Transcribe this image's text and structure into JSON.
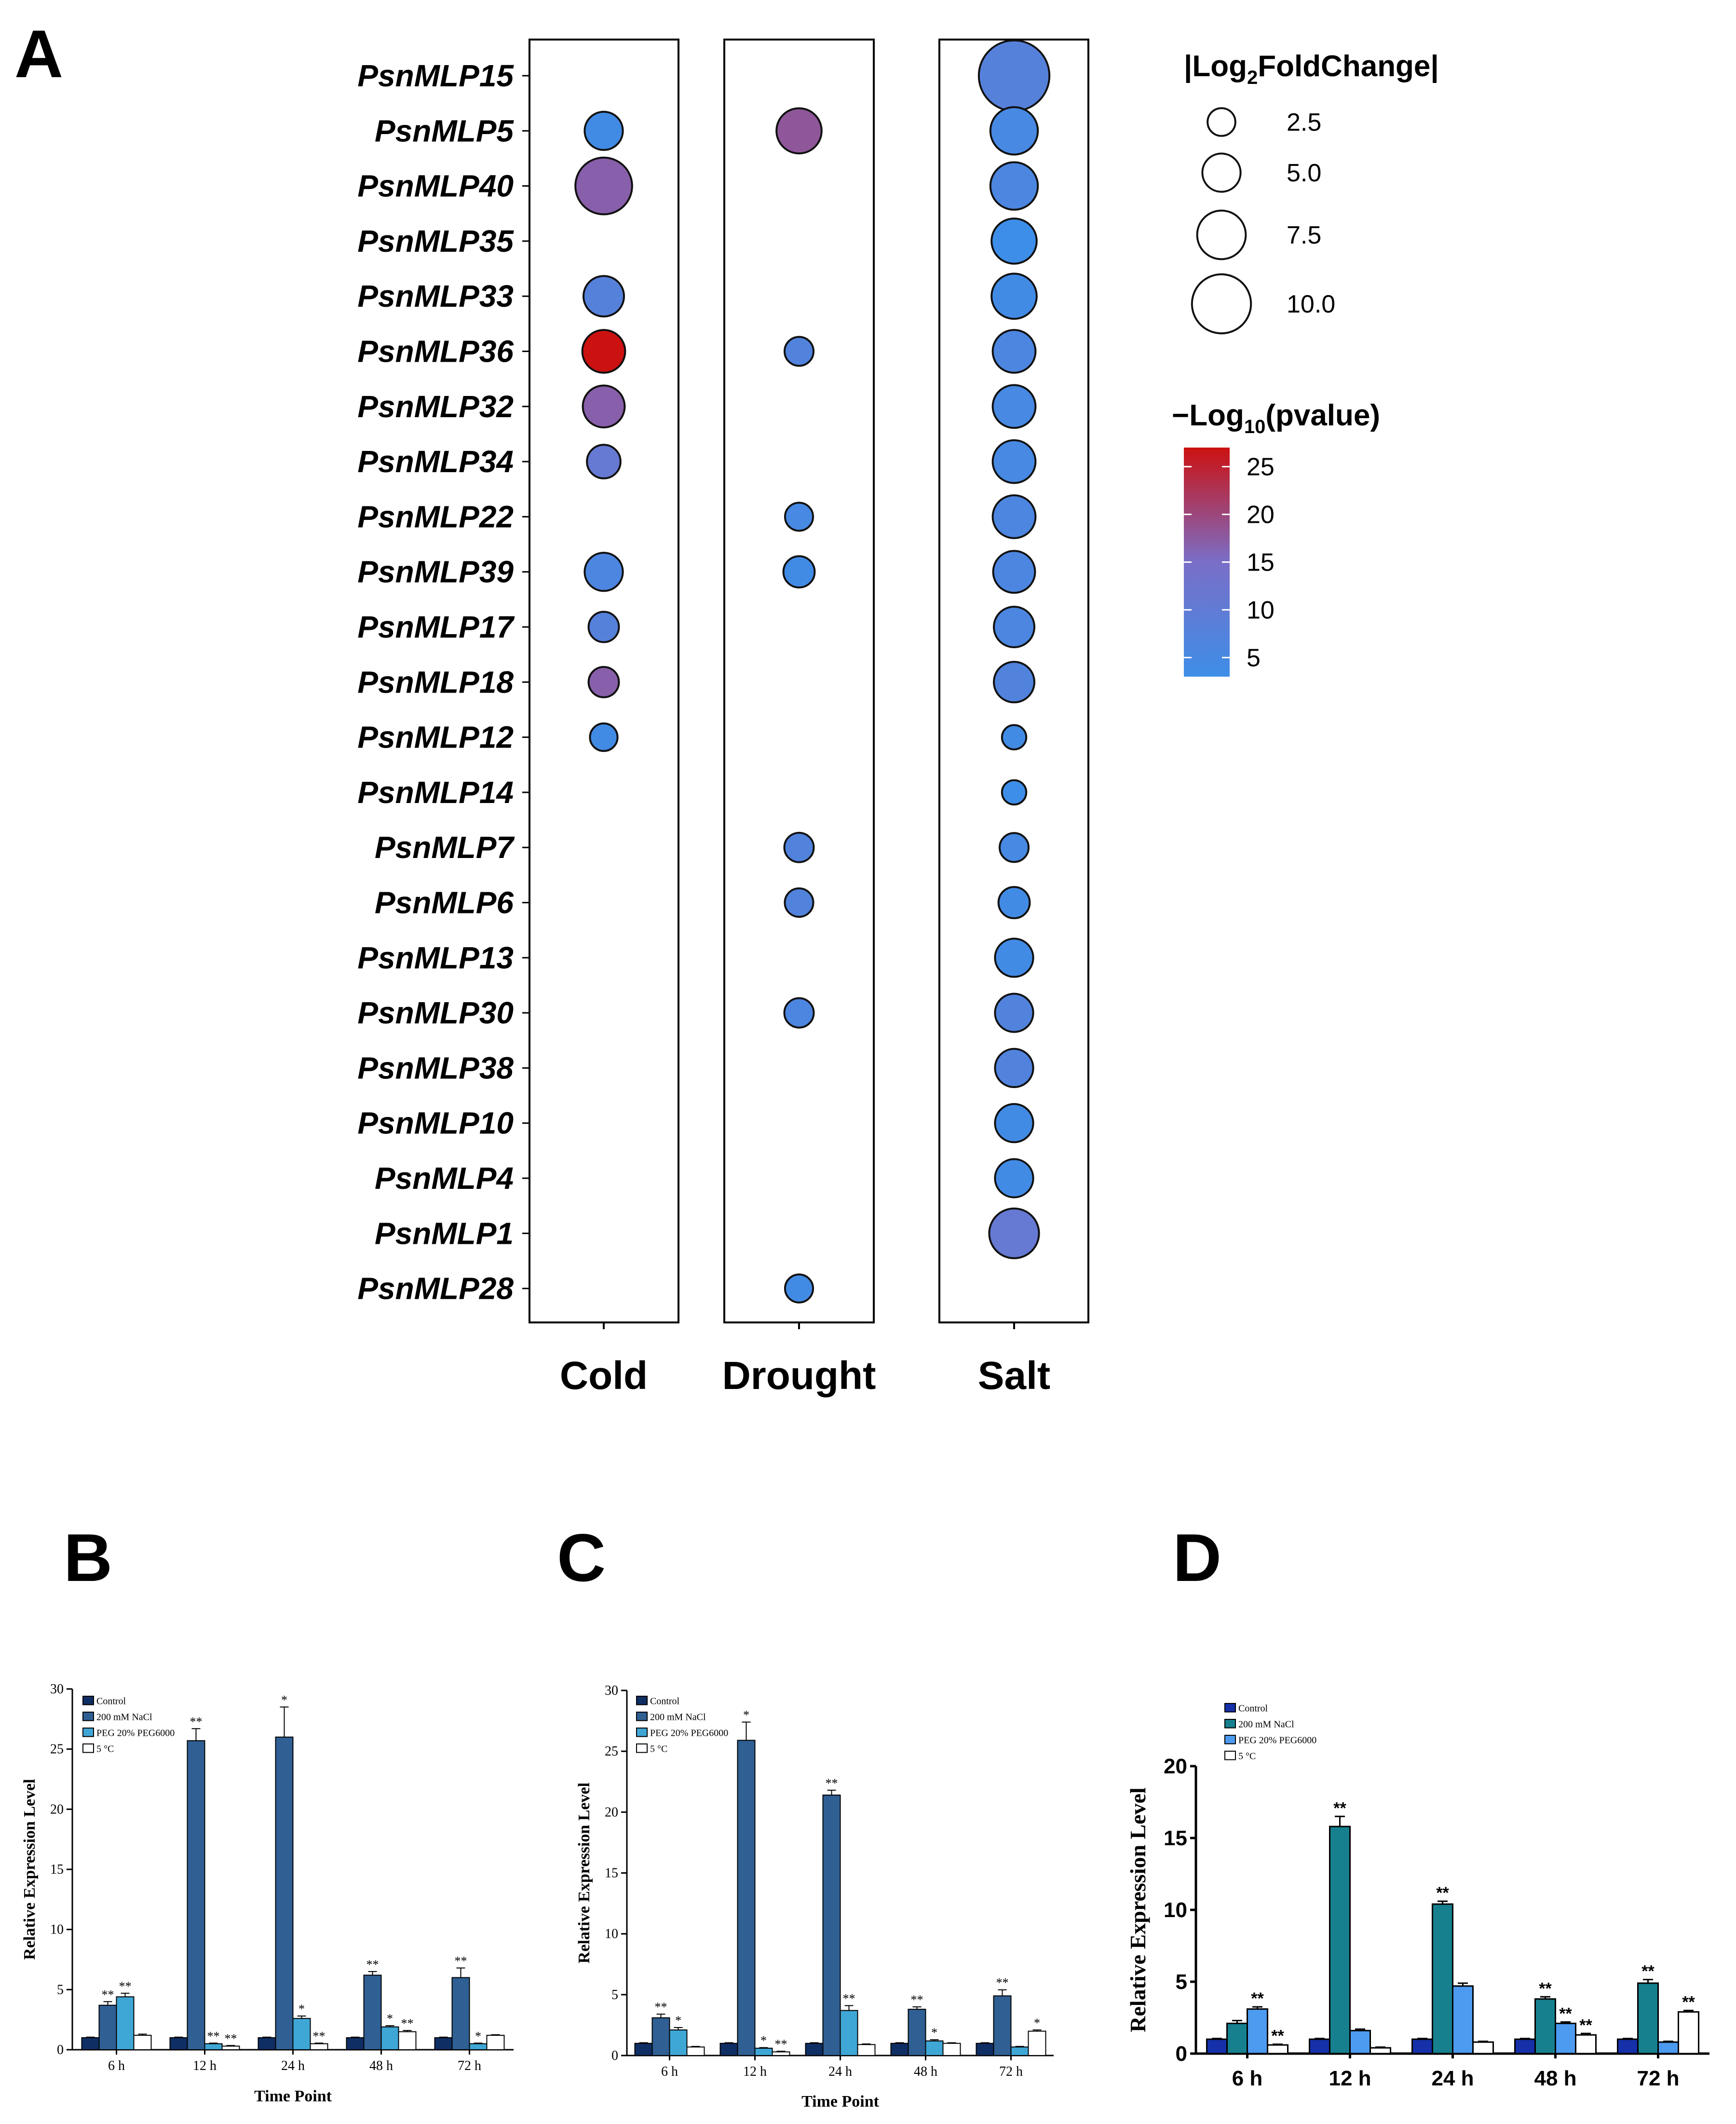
{
  "panel_letters": {
    "a": "A",
    "b": "B",
    "c": "C",
    "d": "D"
  },
  "chart_data": [
    {
      "id": "A",
      "type": "scatter",
      "subtype": "bubble",
      "conditions": [
        "Cold",
        "Drought",
        "Salt"
      ],
      "genes": [
        "PsnMLP15",
        "PsnMLP5",
        "PsnMLP40",
        "PsnMLP35",
        "PsnMLP33",
        "PsnMLP36",
        "PsnMLP32",
        "PsnMLP34",
        "PsnMLP22",
        "PsnMLP39",
        "PsnMLP17",
        "PsnMLP18",
        "PsnMLP12",
        "PsnMLP14",
        "PsnMLP7",
        "PsnMLP6",
        "PsnMLP13",
        "PsnMLP30",
        "PsnMLP38",
        "PsnMLP10",
        "PsnMLP4",
        "PsnMLP1",
        "PsnMLP28"
      ],
      "size_legend": {
        "title_parts": [
          "|Log",
          "2",
          "FoldChange|"
        ],
        "values": [
          2.5,
          5.0,
          7.5,
          10.0
        ],
        "labels": [
          "2.5",
          "5.0",
          "7.5",
          "10.0"
        ]
      },
      "color_legend": {
        "title_parts": [
          "−Log",
          "10",
          "(pvalue)"
        ],
        "min": 3,
        "max": 27,
        "ticks": [
          5,
          10,
          15,
          20,
          25
        ],
        "tick_labels": [
          "5",
          "10",
          "15",
          "20",
          "25"
        ],
        "low_color": "#3d8ee8",
        "mid_color": "#7a6ec8",
        "high_color": "#cc1111"
      },
      "points": [
        {
          "gene": "PsnMLP5",
          "condition": "Cold",
          "fc": 4.5,
          "p": 4
        },
        {
          "gene": "PsnMLP40",
          "condition": "Cold",
          "fc": 8.5,
          "p": 17
        },
        {
          "gene": "PsnMLP33",
          "condition": "Cold",
          "fc": 5.0,
          "p": 8
        },
        {
          "gene": "PsnMLP36",
          "condition": "Cold",
          "fc": 5.5,
          "p": 27
        },
        {
          "gene": "PsnMLP32",
          "condition": "Cold",
          "fc": 5.3,
          "p": 17
        },
        {
          "gene": "PsnMLP34",
          "condition": "Cold",
          "fc": 3.5,
          "p": 11
        },
        {
          "gene": "PsnMLP39",
          "condition": "Cold",
          "fc": 4.5,
          "p": 6
        },
        {
          "gene": "PsnMLP17",
          "condition": "Cold",
          "fc": 2.8,
          "p": 8
        },
        {
          "gene": "PsnMLP18",
          "condition": "Cold",
          "fc": 2.8,
          "p": 17
        },
        {
          "gene": "PsnMLP12",
          "condition": "Cold",
          "fc": 2.2,
          "p": 4
        },
        {
          "gene": "PsnMLP5",
          "condition": "Drought",
          "fc": 6.0,
          "p": 18
        },
        {
          "gene": "PsnMLP36",
          "condition": "Drought",
          "fc": 2.5,
          "p": 7
        },
        {
          "gene": "PsnMLP22",
          "condition": "Drought",
          "fc": 2.3,
          "p": 5
        },
        {
          "gene": "PsnMLP39",
          "condition": "Drought",
          "fc": 3.0,
          "p": 4
        },
        {
          "gene": "PsnMLP7",
          "condition": "Drought",
          "fc": 2.6,
          "p": 7
        },
        {
          "gene": "PsnMLP6",
          "condition": "Drought",
          "fc": 2.4,
          "p": 7
        },
        {
          "gene": "PsnMLP30",
          "condition": "Drought",
          "fc": 2.6,
          "p": 6
        },
        {
          "gene": "PsnMLP28",
          "condition": "Drought",
          "fc": 2.3,
          "p": 4
        },
        {
          "gene": "PsnMLP15",
          "condition": "Salt",
          "fc": 11.5,
          "p": 8
        },
        {
          "gene": "PsnMLP5",
          "condition": "Salt",
          "fc": 6.5,
          "p": 5
        },
        {
          "gene": "PsnMLP40",
          "condition": "Salt",
          "fc": 6.5,
          "p": 6
        },
        {
          "gene": "PsnMLP35",
          "condition": "Salt",
          "fc": 6.0,
          "p": 3
        },
        {
          "gene": "PsnMLP33",
          "condition": "Salt",
          "fc": 6.0,
          "p": 4
        },
        {
          "gene": "PsnMLP36",
          "condition": "Salt",
          "fc": 5.5,
          "p": 6
        },
        {
          "gene": "PsnMLP32",
          "condition": "Salt",
          "fc": 5.5,
          "p": 5
        },
        {
          "gene": "PsnMLP34",
          "condition": "Salt",
          "fc": 5.5,
          "p": 5
        },
        {
          "gene": "PsnMLP22",
          "condition": "Salt",
          "fc": 5.5,
          "p": 6
        },
        {
          "gene": "PsnMLP39",
          "condition": "Salt",
          "fc": 5.3,
          "p": 6
        },
        {
          "gene": "PsnMLP17",
          "condition": "Salt",
          "fc": 5.0,
          "p": 6
        },
        {
          "gene": "PsnMLP18",
          "condition": "Salt",
          "fc": 5.0,
          "p": 7
        },
        {
          "gene": "PsnMLP12",
          "condition": "Salt",
          "fc": 1.5,
          "p": 4
        },
        {
          "gene": "PsnMLP14",
          "condition": "Salt",
          "fc": 1.5,
          "p": 3
        },
        {
          "gene": "PsnMLP7",
          "condition": "Salt",
          "fc": 2.5,
          "p": 5
        },
        {
          "gene": "PsnMLP6",
          "condition": "Salt",
          "fc": 3.0,
          "p": 4
        },
        {
          "gene": "PsnMLP13",
          "condition": "Salt",
          "fc": 4.5,
          "p": 4
        },
        {
          "gene": "PsnMLP30",
          "condition": "Salt",
          "fc": 4.5,
          "p": 7
        },
        {
          "gene": "PsnMLP38",
          "condition": "Salt",
          "fc": 4.5,
          "p": 7
        },
        {
          "gene": "PsnMLP10",
          "condition": "Salt",
          "fc": 4.5,
          "p": 4
        },
        {
          "gene": "PsnMLP4",
          "condition": "Salt",
          "fc": 4.5,
          "p": 4
        },
        {
          "gene": "PsnMLP1",
          "condition": "Salt",
          "fc": 7.0,
          "p": 11
        },
        {
          "gene": "PsnMLP28",
          "condition": "Salt",
          "fc": 0,
          "p": 0
        }
      ]
    },
    {
      "id": "B",
      "type": "bar",
      "categories": [
        "6 h",
        "12 h",
        "24 h",
        "48 h",
        "72 h"
      ],
      "xlabel": "Time Point",
      "ylabel": "Relative Expression Level",
      "ylim": [
        0,
        30
      ],
      "yticks": [
        0,
        5,
        10,
        15,
        20,
        25,
        30
      ],
      "legend_position": "top-left",
      "series": [
        {
          "name": "Control",
          "color": "#0f2e63",
          "values": [
            1.0,
            1.0,
            1.0,
            1.0,
            1.0
          ],
          "errors": [
            0.05,
            0.05,
            0.05,
            0.05,
            0.05
          ],
          "sig": [
            "",
            "",
            "",
            "",
            ""
          ]
        },
        {
          "name": "200 mM NaCl",
          "color": "#2f5f93",
          "values": [
            3.7,
            25.7,
            26.0,
            6.2,
            6.0
          ],
          "errors": [
            0.3,
            1.0,
            2.5,
            0.3,
            0.8
          ],
          "sig": [
            "**",
            "**",
            "*",
            "**",
            "**"
          ]
        },
        {
          "name": "PEG 20% PEG6000",
          "color": "#3fa7d6",
          "values": [
            4.4,
            0.5,
            2.6,
            1.9,
            0.5
          ],
          "errors": [
            0.3,
            0.05,
            0.2,
            0.1,
            0.05
          ],
          "sig": [
            "**",
            "**",
            "*",
            "*",
            "*"
          ]
        },
        {
          "name": "5 °C",
          "color": "#ffffff",
          "values": [
            1.2,
            0.3,
            0.5,
            1.5,
            1.2
          ],
          "errors": [
            0.1,
            0.05,
            0.05,
            0.1,
            0.05
          ],
          "sig": [
            "",
            "**",
            "**",
            "**",
            ""
          ]
        }
      ]
    },
    {
      "id": "C",
      "type": "bar",
      "categories": [
        "6 h",
        "12 h",
        "24 h",
        "48 h",
        "72 h"
      ],
      "xlabel": "Time Point",
      "ylabel": "Relative Expression Level",
      "ylim": [
        0,
        30
      ],
      "yticks": [
        0,
        5,
        10,
        15,
        20,
        25,
        30
      ],
      "legend_position": "top-left",
      "series": [
        {
          "name": "Control",
          "color": "#0f2e63",
          "values": [
            1.0,
            1.0,
            1.0,
            1.0,
            1.0
          ],
          "errors": [
            0.05,
            0.05,
            0.05,
            0.05,
            0.05
          ],
          "sig": [
            "",
            "",
            "",
            "",
            ""
          ]
        },
        {
          "name": "200 mM NaCl",
          "color": "#2f5f93",
          "values": [
            3.1,
            25.9,
            21.4,
            3.8,
            4.9
          ],
          "errors": [
            0.3,
            1.5,
            0.4,
            0.2,
            0.5
          ],
          "sig": [
            "**",
            "*",
            "**",
            "**",
            "**"
          ]
        },
        {
          "name": "PEG 20% PEG6000",
          "color": "#3fa7d6",
          "values": [
            2.1,
            0.6,
            3.7,
            1.2,
            0.7
          ],
          "errors": [
            0.2,
            0.05,
            0.4,
            0.1,
            0.05
          ],
          "sig": [
            "*",
            "*",
            "**",
            "*",
            ""
          ]
        },
        {
          "name": "5 °C",
          "color": "#ffffff",
          "values": [
            0.7,
            0.3,
            0.9,
            1.0,
            2.0
          ],
          "errors": [
            0.05,
            0.05,
            0.05,
            0.05,
            0.1
          ],
          "sig": [
            "",
            "**",
            "",
            "",
            "*"
          ]
        }
      ]
    },
    {
      "id": "D",
      "type": "bar",
      "categories": [
        "6 h",
        "12 h",
        "24 h",
        "48 h",
        "72 h"
      ],
      "xlabel": "",
      "ylabel": "Relative Expression Level",
      "ylim": [
        0,
        20
      ],
      "yticks": [
        0,
        5,
        10,
        15,
        20
      ],
      "legend_position": "top-left",
      "series": [
        {
          "name": "Control",
          "color": "#1530a8",
          "values": [
            1.0,
            1.0,
            1.0,
            1.0,
            1.0
          ],
          "errors": [
            0.05,
            0.05,
            0.05,
            0.05,
            0.05
          ],
          "sig": [
            "",
            "",
            "",
            "",
            ""
          ]
        },
        {
          "name": "200 mM NaCl",
          "color": "#16808f",
          "values": [
            2.1,
            15.8,
            10.4,
            3.8,
            4.9
          ],
          "errors": [
            0.2,
            0.7,
            0.2,
            0.15,
            0.25
          ],
          "sig": [
            "",
            "**",
            "**",
            "**",
            "**"
          ]
        },
        {
          "name": "PEG 20% PEG6000",
          "color": "#4d9bf0",
          "values": [
            3.1,
            1.6,
            4.7,
            2.1,
            0.8
          ],
          "errors": [
            0.15,
            0.1,
            0.2,
            0.1,
            0.05
          ],
          "sig": [
            "**",
            "",
            "",
            "**",
            ""
          ]
        },
        {
          "name": "5 °C",
          "color": "#ffffff",
          "values": [
            0.6,
            0.4,
            0.8,
            1.3,
            2.9
          ],
          "errors": [
            0.05,
            0.05,
            0.05,
            0.1,
            0.1
          ],
          "sig": [
            "**",
            "",
            "",
            "**",
            "**"
          ]
        }
      ],
      "legend_labels": [
        "Control",
        "200 mM NaCl",
        "PEG 20% PEG6000",
        "5 °C"
      ]
    }
  ]
}
